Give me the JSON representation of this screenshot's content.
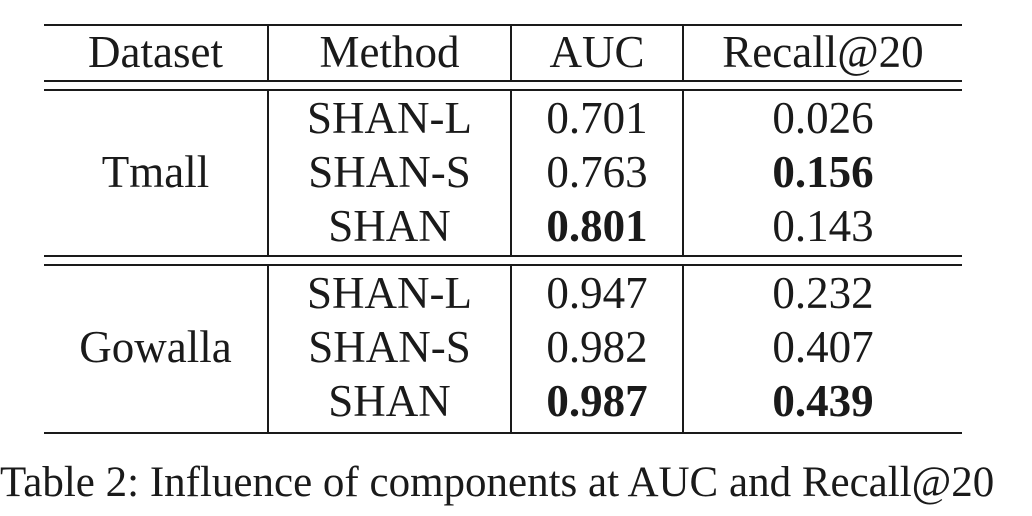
{
  "table": {
    "columns": [
      "Dataset",
      "Method",
      "AUC",
      "Recall@20"
    ],
    "groups": [
      {
        "dataset": "Tmall",
        "rows": [
          {
            "method": "SHAN-L",
            "auc": "0.701",
            "recall": "0.026"
          },
          {
            "method": "SHAN-S",
            "auc": "0.763",
            "recall": "0.156"
          },
          {
            "method": "SHAN",
            "auc": "0.801",
            "recall": "0.143"
          }
        ]
      },
      {
        "dataset": "Gowalla",
        "rows": [
          {
            "method": "SHAN-L",
            "auc": "0.947",
            "recall": "0.232"
          },
          {
            "method": "SHAN-S",
            "auc": "0.982",
            "recall": "0.407"
          },
          {
            "method": "SHAN",
            "auc": "0.987",
            "recall": "0.439"
          }
        ]
      }
    ]
  },
  "caption": "Table 2: Influence of components at AUC and Recall@20"
}
